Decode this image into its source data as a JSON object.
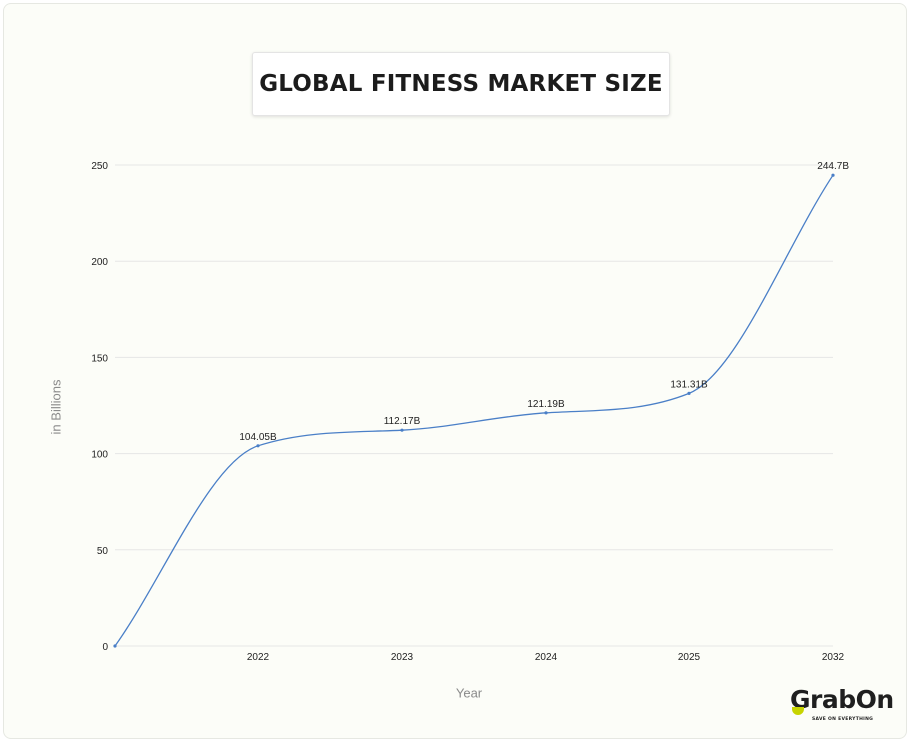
{
  "chart_data": {
    "type": "line",
    "title": "GLOBAL FITNESS MARKET SIZE",
    "xlabel": "Year",
    "ylabel": "in Billions",
    "categories": [
      "",
      "2022",
      "2023",
      "2024",
      "2025",
      "2032"
    ],
    "values": [
      0,
      104.05,
      112.17,
      121.19,
      131.31,
      244.7
    ],
    "data_labels": [
      "",
      "104.05B",
      "112.17B",
      "121.19B",
      "131.31B",
      "244.7B"
    ],
    "y_ticks": [
      "0",
      "50",
      "100",
      "150",
      "200",
      "250"
    ],
    "ylim": [
      0,
      250
    ],
    "grid": true,
    "line_color": "#4a7fc7"
  },
  "logo": {
    "name": "GrabOn",
    "tagline": "SAVE ON EVERYTHING",
    "accent_color": "#c7d400"
  }
}
